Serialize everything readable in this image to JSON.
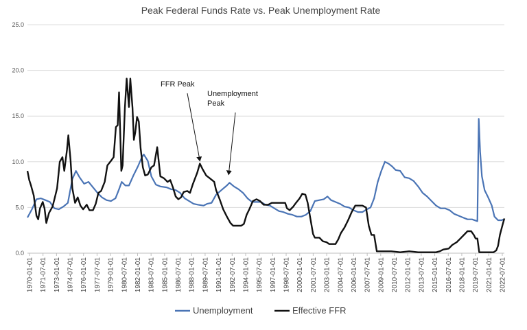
{
  "chart_data": {
    "type": "line",
    "title": "Peak Federal Funds Rate vs. Peak Unemployment Rate",
    "xlabel": "",
    "ylabel": "",
    "ylim": [
      0,
      25
    ],
    "yticks": [
      "0.0",
      "5.0",
      "10.0",
      "15.0",
      "20.0",
      "25.0"
    ],
    "grid": true,
    "legend_position": "bottom",
    "x_tick_labels": [
      "1970-01-01",
      "1971-07-01",
      "1973-01-01",
      "1974-07-01",
      "1976-01-01",
      "1977-07-01",
      "1979-01-01",
      "1980-07-01",
      "1982-01-01",
      "1983-07-01",
      "1985-01-01",
      "1986-07-01",
      "1988-01-01",
      "1989-07-01",
      "1991-01-01",
      "1992-07-01",
      "1994-01-01",
      "1995-07-01",
      "1997-01-01",
      "1998-07-01",
      "2000-01-01",
      "2001-07-01",
      "2003-01-01",
      "2004-07-01",
      "2006-01-01",
      "2007-07-01",
      "2009-01-01",
      "2010-07-01",
      "2012-01-01",
      "2013-07-01",
      "2015-01-01",
      "2016-07-01",
      "2018-01-01",
      "2019-07-01",
      "2021-01-01",
      "2022-07-01"
    ],
    "x_range": [
      1970.0,
      2023.1
    ],
    "series": [
      {
        "name": "Unemployment",
        "color": "#4a74b5",
        "points": [
          [
            1970.0,
            3.9
          ],
          [
            1970.5,
            4.8
          ],
          [
            1971.0,
            5.9
          ],
          [
            1971.5,
            6.0
          ],
          [
            1972.0,
            5.8
          ],
          [
            1972.5,
            5.6
          ],
          [
            1973.0,
            4.9
          ],
          [
            1973.5,
            4.8
          ],
          [
            1974.0,
            5.1
          ],
          [
            1974.5,
            5.5
          ],
          [
            1975.0,
            8.1
          ],
          [
            1975.4,
            9.0
          ],
          [
            1975.8,
            8.3
          ],
          [
            1976.3,
            7.6
          ],
          [
            1976.8,
            7.8
          ],
          [
            1977.3,
            7.2
          ],
          [
            1977.8,
            6.6
          ],
          [
            1978.3,
            6.1
          ],
          [
            1978.8,
            5.8
          ],
          [
            1979.3,
            5.7
          ],
          [
            1979.8,
            6.0
          ],
          [
            1980.2,
            7.0
          ],
          [
            1980.5,
            7.8
          ],
          [
            1980.9,
            7.4
          ],
          [
            1981.3,
            7.4
          ],
          [
            1981.8,
            8.5
          ],
          [
            1982.3,
            9.5
          ],
          [
            1982.7,
            10.4
          ],
          [
            1982.95,
            10.8
          ],
          [
            1983.4,
            10.1
          ],
          [
            1983.8,
            8.4
          ],
          [
            1984.3,
            7.5
          ],
          [
            1984.8,
            7.3
          ],
          [
            1985.5,
            7.2
          ],
          [
            1986.0,
            7.0
          ],
          [
            1986.5,
            6.9
          ],
          [
            1987.0,
            6.6
          ],
          [
            1987.5,
            6.0
          ],
          [
            1988.0,
            5.7
          ],
          [
            1988.5,
            5.4
          ],
          [
            1989.0,
            5.3
          ],
          [
            1989.6,
            5.2
          ],
          [
            1990.0,
            5.4
          ],
          [
            1990.5,
            5.5
          ],
          [
            1991.0,
            6.4
          ],
          [
            1991.6,
            6.9
          ],
          [
            1992.2,
            7.4
          ],
          [
            1992.5,
            7.7
          ],
          [
            1993.0,
            7.3
          ],
          [
            1993.5,
            7.0
          ],
          [
            1994.0,
            6.6
          ],
          [
            1994.5,
            6.0
          ],
          [
            1995.0,
            5.6
          ],
          [
            1995.5,
            5.6
          ],
          [
            1996.0,
            5.6
          ],
          [
            1996.5,
            5.3
          ],
          [
            1997.0,
            5.2
          ],
          [
            1997.5,
            4.9
          ],
          [
            1998.0,
            4.6
          ],
          [
            1998.5,
            4.5
          ],
          [
            1999.0,
            4.3
          ],
          [
            1999.5,
            4.2
          ],
          [
            2000.0,
            4.0
          ],
          [
            2000.5,
            4.0
          ],
          [
            2001.0,
            4.2
          ],
          [
            2001.5,
            4.6
          ],
          [
            2002.0,
            5.7
          ],
          [
            2002.5,
            5.8
          ],
          [
            2003.0,
            5.9
          ],
          [
            2003.4,
            6.2
          ],
          [
            2003.8,
            5.8
          ],
          [
            2004.3,
            5.6
          ],
          [
            2004.8,
            5.4
          ],
          [
            2005.3,
            5.1
          ],
          [
            2005.8,
            5.0
          ],
          [
            2006.3,
            4.7
          ],
          [
            2006.8,
            4.5
          ],
          [
            2007.3,
            4.5
          ],
          [
            2007.8,
            4.8
          ],
          [
            2008.2,
            5.0
          ],
          [
            2008.6,
            6.0
          ],
          [
            2009.0,
            7.8
          ],
          [
            2009.4,
            9.0
          ],
          [
            2009.8,
            10.0
          ],
          [
            2010.2,
            9.8
          ],
          [
            2010.6,
            9.5
          ],
          [
            2011.0,
            9.1
          ],
          [
            2011.5,
            9.0
          ],
          [
            2012.0,
            8.3
          ],
          [
            2012.5,
            8.2
          ],
          [
            2013.0,
            7.9
          ],
          [
            2013.5,
            7.3
          ],
          [
            2014.0,
            6.6
          ],
          [
            2014.5,
            6.2
          ],
          [
            2015.0,
            5.7
          ],
          [
            2015.5,
            5.2
          ],
          [
            2016.0,
            4.9
          ],
          [
            2016.5,
            4.9
          ],
          [
            2017.0,
            4.7
          ],
          [
            2017.5,
            4.3
          ],
          [
            2018.0,
            4.1
          ],
          [
            2018.5,
            3.9
          ],
          [
            2019.0,
            3.7
          ],
          [
            2019.5,
            3.7
          ],
          [
            2020.1,
            3.5
          ],
          [
            2020.25,
            14.7
          ],
          [
            2020.4,
            11.1
          ],
          [
            2020.6,
            8.4
          ],
          [
            2020.9,
            6.9
          ],
          [
            2021.3,
            6.1
          ],
          [
            2021.7,
            5.2
          ],
          [
            2022.0,
            4.0
          ],
          [
            2022.4,
            3.6
          ],
          [
            2022.8,
            3.6
          ],
          [
            2023.0,
            3.7
          ]
        ]
      },
      {
        "name": "Effective FFR",
        "color": "#111111",
        "points": [
          [
            1970.0,
            9.0
          ],
          [
            1970.2,
            8.0
          ],
          [
            1970.4,
            7.4
          ],
          [
            1970.7,
            6.3
          ],
          [
            1971.0,
            4.1
          ],
          [
            1971.2,
            3.7
          ],
          [
            1971.4,
            4.9
          ],
          [
            1971.7,
            5.6
          ],
          [
            1971.9,
            4.9
          ],
          [
            1972.1,
            3.3
          ],
          [
            1972.4,
            4.4
          ],
          [
            1972.8,
            5.1
          ],
          [
            1973.0,
            5.9
          ],
          [
            1973.3,
            7.1
          ],
          [
            1973.6,
            10.0
          ],
          [
            1973.9,
            10.5
          ],
          [
            1974.1,
            9.0
          ],
          [
            1974.4,
            11.3
          ],
          [
            1974.55,
            12.9
          ],
          [
            1974.8,
            10.2
          ],
          [
            1975.0,
            7.1
          ],
          [
            1975.3,
            5.5
          ],
          [
            1975.6,
            6.1
          ],
          [
            1975.9,
            5.2
          ],
          [
            1976.2,
            4.8
          ],
          [
            1976.6,
            5.3
          ],
          [
            1976.9,
            4.7
          ],
          [
            1977.3,
            4.7
          ],
          [
            1977.6,
            5.4
          ],
          [
            1977.9,
            6.6
          ],
          [
            1978.2,
            6.8
          ],
          [
            1978.6,
            7.8
          ],
          [
            1978.9,
            9.6
          ],
          [
            1979.3,
            10.1
          ],
          [
            1979.6,
            10.5
          ],
          [
            1979.85,
            13.8
          ],
          [
            1980.05,
            14.0
          ],
          [
            1980.2,
            17.6
          ],
          [
            1980.45,
            9.0
          ],
          [
            1980.6,
            9.6
          ],
          [
            1980.85,
            15.9
          ],
          [
            1981.05,
            19.1
          ],
          [
            1981.3,
            16.0
          ],
          [
            1981.45,
            19.1
          ],
          [
            1981.7,
            15.9
          ],
          [
            1981.85,
            12.4
          ],
          [
            1982.0,
            13.2
          ],
          [
            1982.2,
            14.9
          ],
          [
            1982.4,
            14.4
          ],
          [
            1982.6,
            11.5
          ],
          [
            1982.85,
            9.4
          ],
          [
            1983.1,
            8.5
          ],
          [
            1983.4,
            8.6
          ],
          [
            1983.8,
            9.4
          ],
          [
            1984.1,
            9.6
          ],
          [
            1984.45,
            11.6
          ],
          [
            1984.8,
            8.4
          ],
          [
            1985.2,
            8.2
          ],
          [
            1985.6,
            7.8
          ],
          [
            1985.9,
            8.0
          ],
          [
            1986.2,
            7.2
          ],
          [
            1986.5,
            6.2
          ],
          [
            1986.8,
            5.9
          ],
          [
            1987.1,
            6.1
          ],
          [
            1987.4,
            6.7
          ],
          [
            1987.8,
            6.8
          ],
          [
            1988.1,
            6.6
          ],
          [
            1988.4,
            7.5
          ],
          [
            1988.9,
            8.8
          ],
          [
            1989.2,
            9.8
          ],
          [
            1989.5,
            9.2
          ],
          [
            1989.9,
            8.5
          ],
          [
            1990.3,
            8.2
          ],
          [
            1990.8,
            7.8
          ],
          [
            1991.0,
            6.9
          ],
          [
            1991.4,
            5.9
          ],
          [
            1991.8,
            4.8
          ],
          [
            1992.2,
            4.0
          ],
          [
            1992.6,
            3.3
          ],
          [
            1992.9,
            3.0
          ],
          [
            1993.3,
            3.0
          ],
          [
            1993.8,
            3.0
          ],
          [
            1994.1,
            3.2
          ],
          [
            1994.4,
            4.2
          ],
          [
            1994.7,
            4.8
          ],
          [
            1995.1,
            5.7
          ],
          [
            1995.5,
            5.9
          ],
          [
            1995.9,
            5.7
          ],
          [
            1996.3,
            5.3
          ],
          [
            1996.8,
            5.3
          ],
          [
            1997.2,
            5.5
          ],
          [
            1997.7,
            5.5
          ],
          [
            1998.2,
            5.5
          ],
          [
            1998.7,
            5.5
          ],
          [
            1998.9,
            4.9
          ],
          [
            1999.2,
            4.7
          ],
          [
            1999.6,
            5.1
          ],
          [
            1999.9,
            5.5
          ],
          [
            2000.3,
            6.0
          ],
          [
            2000.6,
            6.5
          ],
          [
            2000.95,
            6.4
          ],
          [
            2001.2,
            5.5
          ],
          [
            2001.5,
            3.8
          ],
          [
            2001.8,
            2.1
          ],
          [
            2002.0,
            1.7
          ],
          [
            2002.5,
            1.7
          ],
          [
            2002.9,
            1.3
          ],
          [
            2003.3,
            1.2
          ],
          [
            2003.6,
            1.0
          ],
          [
            2003.9,
            1.0
          ],
          [
            2004.3,
            1.0
          ],
          [
            2004.6,
            1.5
          ],
          [
            2004.9,
            2.2
          ],
          [
            2005.3,
            2.8
          ],
          [
            2005.7,
            3.6
          ],
          [
            2006.1,
            4.5
          ],
          [
            2006.5,
            5.2
          ],
          [
            2006.9,
            5.2
          ],
          [
            2007.3,
            5.2
          ],
          [
            2007.7,
            5.0
          ],
          [
            2008.0,
            3.0
          ],
          [
            2008.3,
            2.0
          ],
          [
            2008.6,
            2.0
          ],
          [
            2008.9,
            0.2
          ],
          [
            2009.5,
            0.2
          ],
          [
            2010.5,
            0.2
          ],
          [
            2011.5,
            0.1
          ],
          [
            2012.5,
            0.2
          ],
          [
            2013.5,
            0.1
          ],
          [
            2014.5,
            0.1
          ],
          [
            2015.5,
            0.1
          ],
          [
            2015.9,
            0.2
          ],
          [
            2016.3,
            0.4
          ],
          [
            2016.9,
            0.5
          ],
          [
            2017.3,
            0.9
          ],
          [
            2017.8,
            1.2
          ],
          [
            2018.2,
            1.6
          ],
          [
            2018.6,
            2.0
          ],
          [
            2019.0,
            2.4
          ],
          [
            2019.4,
            2.4
          ],
          [
            2019.7,
            2.0
          ],
          [
            2019.9,
            1.6
          ],
          [
            2020.1,
            1.6
          ],
          [
            2020.3,
            0.1
          ],
          [
            2021.0,
            0.1
          ],
          [
            2021.9,
            0.1
          ],
          [
            2022.2,
            0.3
          ],
          [
            2022.4,
            0.8
          ],
          [
            2022.6,
            2.0
          ],
          [
            2022.9,
            3.1
          ],
          [
            2023.1,
            3.8
          ]
        ]
      }
    ],
    "annotations": [
      {
        "id": "ffr-peak",
        "lines": [
          "FFR Peak"
        ],
        "arrow_to": [
          1989.2,
          9.8
        ]
      },
      {
        "id": "unemployment-peak",
        "lines": [
          "Unemployment",
          "Peak"
        ],
        "arrow_to": [
          1992.4,
          8.3
        ]
      }
    ],
    "legend": [
      "Unemployment",
      "Effective FFR"
    ]
  }
}
